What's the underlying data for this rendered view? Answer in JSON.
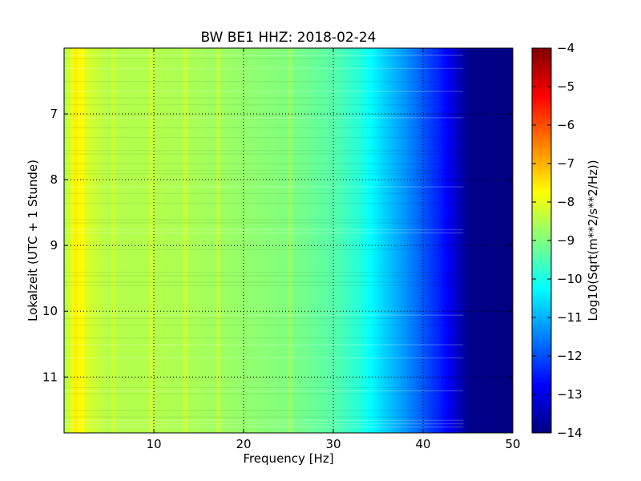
{
  "chart_data": {
    "type": "heatmap",
    "title": "BW BE1 HHZ: 2018-02-24",
    "xlabel": "Frequency [Hz]",
    "ylabel": "Lokalzeit (UTC + 1 Stunde)",
    "xlim": [
      0,
      50
    ],
    "ylim": [
      11.85,
      6.0
    ],
    "x_ticks": [
      10,
      20,
      30,
      40,
      50
    ],
    "y_ticks": [
      7,
      8,
      9,
      10,
      11
    ],
    "grid": true,
    "colormap": "jet",
    "colorbar": {
      "label": "Log10(Sqrt(m**2/s**2/Hz))",
      "range": [
        -14,
        -4
      ],
      "ticks": [
        -4,
        -5,
        -6,
        -7,
        -8,
        -9,
        -10,
        -11,
        -12,
        -13,
        -14
      ]
    },
    "spectral_profile": {
      "frequency_hz": [
        0,
        1,
        1.5,
        2,
        3,
        5,
        10,
        15,
        20,
        25,
        30,
        33,
        35,
        38,
        40,
        42,
        43,
        44,
        45,
        50
      ],
      "log10_amplitude": [
        -8.6,
        -7.9,
        -7.8,
        -8.0,
        -8.2,
        -8.5,
        -8.5,
        -8.6,
        -8.8,
        -9.0,
        -9.4,
        -9.9,
        -10.5,
        -11.3,
        -11.9,
        -12.5,
        -12.9,
        -13.4,
        -13.9,
        -14.0
      ]
    },
    "strong_lines_hz": [
      1.3,
      2.0,
      5.5,
      9.8,
      13.5,
      17.2,
      25.3
    ]
  },
  "colors": {
    "jet": [
      "#000080",
      "#0000ff",
      "#0080ff",
      "#00ffff",
      "#80ff80",
      "#ffff00",
      "#ff8000",
      "#ff0000",
      "#800000"
    ]
  }
}
